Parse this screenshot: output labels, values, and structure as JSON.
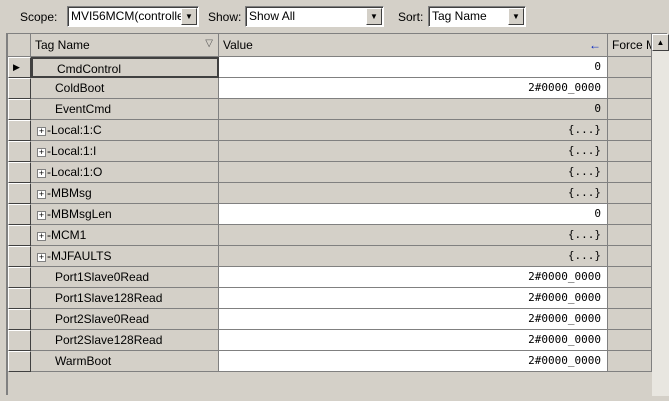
{
  "toolbar": {
    "scope_label": "Scope:",
    "scope_value": "MVI56MCM(controlle",
    "show_label": "Show:",
    "show_value": "Show All",
    "sort_label": "Sort:",
    "sort_value": "Tag Name"
  },
  "columns": {
    "tag_name": "Tag Name",
    "value": "Value",
    "force": "Force M",
    "sort_icon": "▽",
    "arrow_icon": "←"
  },
  "rows": [
    {
      "name": "CmdControl",
      "value": "0",
      "expandable": false,
      "editable": true,
      "selected": true
    },
    {
      "name": "ColdBoot",
      "value": "2#0000_0000",
      "expandable": false,
      "editable": true
    },
    {
      "name": "EventCmd",
      "value": "0",
      "expandable": false,
      "editable": false
    },
    {
      "name": "Local:1:C",
      "value": "{...}",
      "expandable": true,
      "editable": false
    },
    {
      "name": "Local:1:I",
      "value": "{...}",
      "expandable": true,
      "editable": false
    },
    {
      "name": "Local:1:O",
      "value": "{...}",
      "expandable": true,
      "editable": false
    },
    {
      "name": "MBMsg",
      "value": "{...}",
      "expandable": true,
      "editable": false
    },
    {
      "name": "MBMsgLen",
      "value": "0",
      "expandable": true,
      "editable": true
    },
    {
      "name": "MCM1",
      "value": "{...}",
      "expandable": true,
      "editable": false
    },
    {
      "name": "MJFAULTS",
      "value": "{...}",
      "expandable": true,
      "editable": false
    },
    {
      "name": "Port1Slave0Read",
      "value": "2#0000_0000",
      "expandable": false,
      "editable": true
    },
    {
      "name": "Port1Slave128Read",
      "value": "2#0000_0000",
      "expandable": false,
      "editable": true
    },
    {
      "name": "Port2Slave0Read",
      "value": "2#0000_0000",
      "expandable": false,
      "editable": true
    },
    {
      "name": "Port2Slave128Read",
      "value": "2#0000_0000",
      "expandable": false,
      "editable": true
    },
    {
      "name": "WarmBoot",
      "value": "2#0000_0000",
      "expandable": false,
      "editable": true
    }
  ]
}
